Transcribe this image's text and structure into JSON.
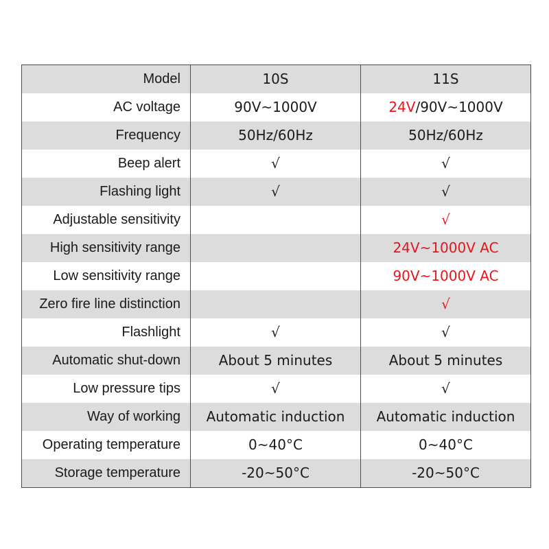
{
  "header": {
    "label": "Model",
    "col1": "10S",
    "col2": "11S"
  },
  "colors": {
    "highlight_red": "#e8141b",
    "row_shade": "#dcdcdc",
    "border": "#4a4a4a"
  },
  "rows": [
    {
      "label": "AC voltage",
      "v1": "90V~1000V",
      "v2_prefix": "24V",
      "v2_rest": "/90V~1000V"
    },
    {
      "label": "Frequency",
      "v1": "50Hz/60Hz",
      "v2": "50Hz/60Hz"
    },
    {
      "label": "Beep alert",
      "v1": "√",
      "v2": "√"
    },
    {
      "label": "Flashing light",
      "v1": "√",
      "v2": "√"
    },
    {
      "label": "Adjustable sensitivity",
      "v1": "",
      "v2": "√"
    },
    {
      "label": "High sensitivity range",
      "v1": "",
      "v2": "24V~1000V AC"
    },
    {
      "label": "Low sensitivity range",
      "v1": "",
      "v2": "90V~1000V AC"
    },
    {
      "label": "Zero fire line distinction",
      "v1": "",
      "v2": "√"
    },
    {
      "label": "Flashlight",
      "v1": "√",
      "v2": "√"
    },
    {
      "label": "Automatic shut-down",
      "v1": "About 5 minutes",
      "v2": "About 5 minutes"
    },
    {
      "label": "Low pressure tips",
      "v1": "√",
      "v2": "√"
    },
    {
      "label": "Way of working",
      "v1": "Automatic induction",
      "v2": "Automatic induction"
    },
    {
      "label": "Operating temperature",
      "v1": "0~40°C",
      "v2": "0~40°C"
    },
    {
      "label": "Storage temperature",
      "v1": "-20~50°C",
      "v2": "-20~50°C"
    }
  ]
}
